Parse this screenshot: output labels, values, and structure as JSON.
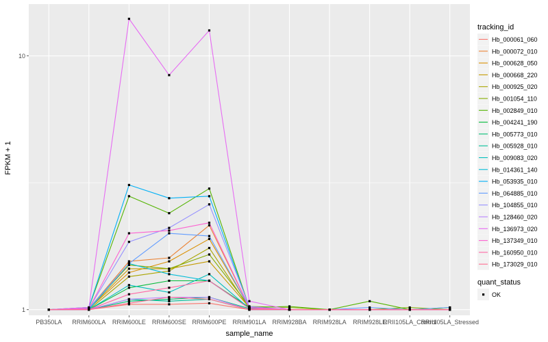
{
  "chart_data": {
    "type": "line",
    "title": "",
    "xlabel": "sample_name",
    "ylabel": "FPKM + 1",
    "y_scale": "log10",
    "ylim": [
      0.95,
      16
    ],
    "y_ticks": [
      {
        "value": 1,
        "label": "1"
      },
      {
        "value": 10,
        "label": "10"
      }
    ],
    "grid": true,
    "legend_placement": "right",
    "categories": [
      "PB350LA",
      "RRIM600LA",
      "RRIM600LE",
      "RRIM600SE",
      "RRIM600PE",
      "RRIM901LA",
      "RRIM928BA",
      "RRIM928LA",
      "RRIM928LE",
      "RRII105LA_Control",
      "RRII105LA_Stressed"
    ],
    "legend_title": "tracking_id",
    "series": [
      {
        "name": "Hb_000061_060",
        "color": "#F8766D",
        "values": [
          1.0,
          1.0,
          1.05,
          1.05,
          1.06,
          1.0,
          1.0,
          1.0,
          1.0,
          1.0,
          1.0
        ]
      },
      {
        "name": "Hb_000072_010",
        "color": "#EB8335",
        "values": [
          1.0,
          1.01,
          1.55,
          1.6,
          2.15,
          1.02,
          1.0,
          1.0,
          1.0,
          1.0,
          1.0
        ]
      },
      {
        "name": "Hb_000628_050",
        "color": "#DA8F00",
        "values": [
          1.0,
          1.01,
          1.4,
          1.55,
          1.9,
          1.02,
          1.0,
          1.0,
          1.0,
          1.0,
          1.0
        ]
      },
      {
        "name": "Hb_000668_220",
        "color": "#C49A00",
        "values": [
          1.0,
          1.01,
          1.45,
          1.45,
          1.55,
          1.02,
          1.0,
          1.0,
          1.0,
          1.0,
          1.0
        ]
      },
      {
        "name": "Hb_000925_020",
        "color": "#A9A400",
        "values": [
          1.0,
          1.0,
          1.35,
          1.42,
          1.75,
          1.01,
          1.0,
          1.0,
          1.0,
          1.0,
          1.0
        ]
      },
      {
        "name": "Hb_001054_110",
        "color": "#86AC00",
        "values": [
          1.0,
          1.01,
          1.5,
          1.45,
          1.65,
          1.03,
          1.02,
          1.0,
          1.0,
          1.02,
          1.0
        ]
      },
      {
        "name": "Hb_002849_010",
        "color": "#53B400",
        "values": [
          1.0,
          1.02,
          2.8,
          2.4,
          3.0,
          1.02,
          1.03,
          1.0,
          1.08,
          1.0,
          1.02
        ]
      },
      {
        "name": "Hb_004241_190",
        "color": "#00BA38",
        "values": [
          1.0,
          1.0,
          1.22,
          1.3,
          1.3,
          1.02,
          1.0,
          1.0,
          1.0,
          1.0,
          1.0
        ]
      },
      {
        "name": "Hb_005773_010",
        "color": "#00BD73",
        "values": [
          1.0,
          1.0,
          1.08,
          1.1,
          1.12,
          1.01,
          1.0,
          1.0,
          1.0,
          1.0,
          1.0
        ]
      },
      {
        "name": "Hb_005928_010",
        "color": "#00BF99",
        "values": [
          1.0,
          1.0,
          1.1,
          1.08,
          1.1,
          1.0,
          1.0,
          1.0,
          1.0,
          1.0,
          1.0
        ]
      },
      {
        "name": "Hb_009083_020",
        "color": "#00BFBC",
        "values": [
          1.0,
          1.0,
          1.25,
          1.17,
          1.38,
          1.01,
          1.0,
          1.0,
          1.0,
          1.0,
          1.0
        ]
      },
      {
        "name": "Hb_014361_140",
        "color": "#00BCD8",
        "values": [
          1.0,
          1.0,
          1.52,
          1.38,
          1.3,
          1.01,
          1.0,
          1.0,
          1.0,
          1.0,
          1.0
        ]
      },
      {
        "name": "Hb_053935_010",
        "color": "#00B0F6",
        "values": [
          1.0,
          1.02,
          3.1,
          2.75,
          2.8,
          1.02,
          1.0,
          1.0,
          1.0,
          1.0,
          1.0
        ]
      },
      {
        "name": "Hb_064885_010",
        "color": "#619CFF",
        "values": [
          1.0,
          1.01,
          1.52,
          2.0,
          1.95,
          1.02,
          1.0,
          1.0,
          1.02,
          1.0,
          1.02
        ]
      },
      {
        "name": "Hb_104855_010",
        "color": "#9590FF",
        "values": [
          1.0,
          1.01,
          1.85,
          2.1,
          2.6,
          1.03,
          1.0,
          1.0,
          1.0,
          1.0,
          1.0
        ]
      },
      {
        "name": "Hb_128460_020",
        "color": "#B983FF",
        "values": [
          1.0,
          1.0,
          1.1,
          1.12,
          1.12,
          1.0,
          1.0,
          1.0,
          1.0,
          1.0,
          1.0
        ]
      },
      {
        "name": "Hb_136973_020",
        "color": "#E76BF3",
        "values": [
          1.0,
          1.02,
          14.0,
          8.4,
          12.6,
          1.08,
          1.0,
          1.0,
          1.0,
          1.0,
          1.0
        ]
      },
      {
        "name": "Hb_137349_010",
        "color": "#FD61D1",
        "values": [
          1.0,
          1.01,
          2.0,
          2.05,
          2.2,
          1.02,
          1.0,
          1.0,
          1.0,
          1.0,
          1.0
        ]
      },
      {
        "name": "Hb_160950_010",
        "color": "#FF67A4",
        "values": [
          1.0,
          1.0,
          1.15,
          1.22,
          1.3,
          1.01,
          1.0,
          1.0,
          1.0,
          1.0,
          1.0
        ]
      },
      {
        "name": "Hb_173029_010",
        "color": "#FF6C91",
        "values": [
          1.0,
          1.0,
          1.06,
          1.12,
          1.1,
          1.0,
          1.0,
          1.0,
          1.0,
          1.0,
          1.0
        ]
      }
    ],
    "shape_legend": {
      "title": "quant_status",
      "items": [
        {
          "label": "OK",
          "shape": "square",
          "color": "#000000"
        }
      ]
    },
    "panel_background": "#EBEBEB",
    "grid_color": "#FFFFFF"
  }
}
